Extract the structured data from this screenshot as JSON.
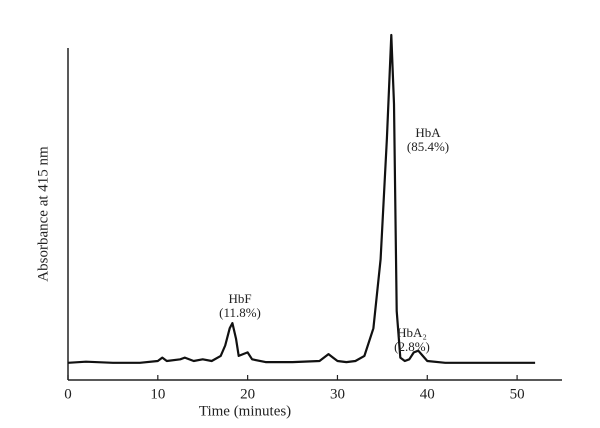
{
  "chart_data": {
    "type": "line",
    "x_label": "Time (minutes)",
    "y_label": "Absorbance at 415 nm",
    "x": [
      0,
      2,
      5,
      8,
      10,
      10.5,
      11,
      12.5,
      13,
      14,
      15,
      16,
      17,
      17.5,
      18,
      18.3,
      18.7,
      19,
      19.5,
      20,
      20.5,
      22,
      25,
      28,
      29,
      29.5,
      30,
      31,
      32,
      33,
      34,
      34.8,
      35.5,
      36,
      36.3,
      36.6,
      37,
      37.5,
      38,
      38.5,
      39,
      39.5,
      40,
      42,
      45,
      50,
      52
    ],
    "values": [
      5,
      5.3,
      5,
      5,
      5.5,
      6.5,
      5.5,
      6,
      6.5,
      5.5,
      6,
      5.5,
      7,
      10,
      15,
      16.5,
      12,
      7,
      7.5,
      8,
      6,
      5.2,
      5.2,
      5.5,
      7.5,
      6.5,
      5.5,
      5.2,
      5.5,
      7,
      15,
      35,
      70,
      100,
      80,
      20,
      6.5,
      5.5,
      6,
      8,
      8.5,
      7,
      5.5,
      5,
      5,
      5,
      5
    ],
    "color": "#111111",
    "xlim": [
      0,
      55
    ],
    "xticks": [
      0,
      10,
      20,
      30,
      40,
      50
    ],
    "ylim": [
      0,
      100
    ],
    "annotations": [
      {
        "name": "HbF",
        "percent": "(11.8%)"
      },
      {
        "name": "HbA",
        "percent": "(85.4%)"
      },
      {
        "name": "HbA₂",
        "percent": "(2.8%)"
      }
    ]
  }
}
